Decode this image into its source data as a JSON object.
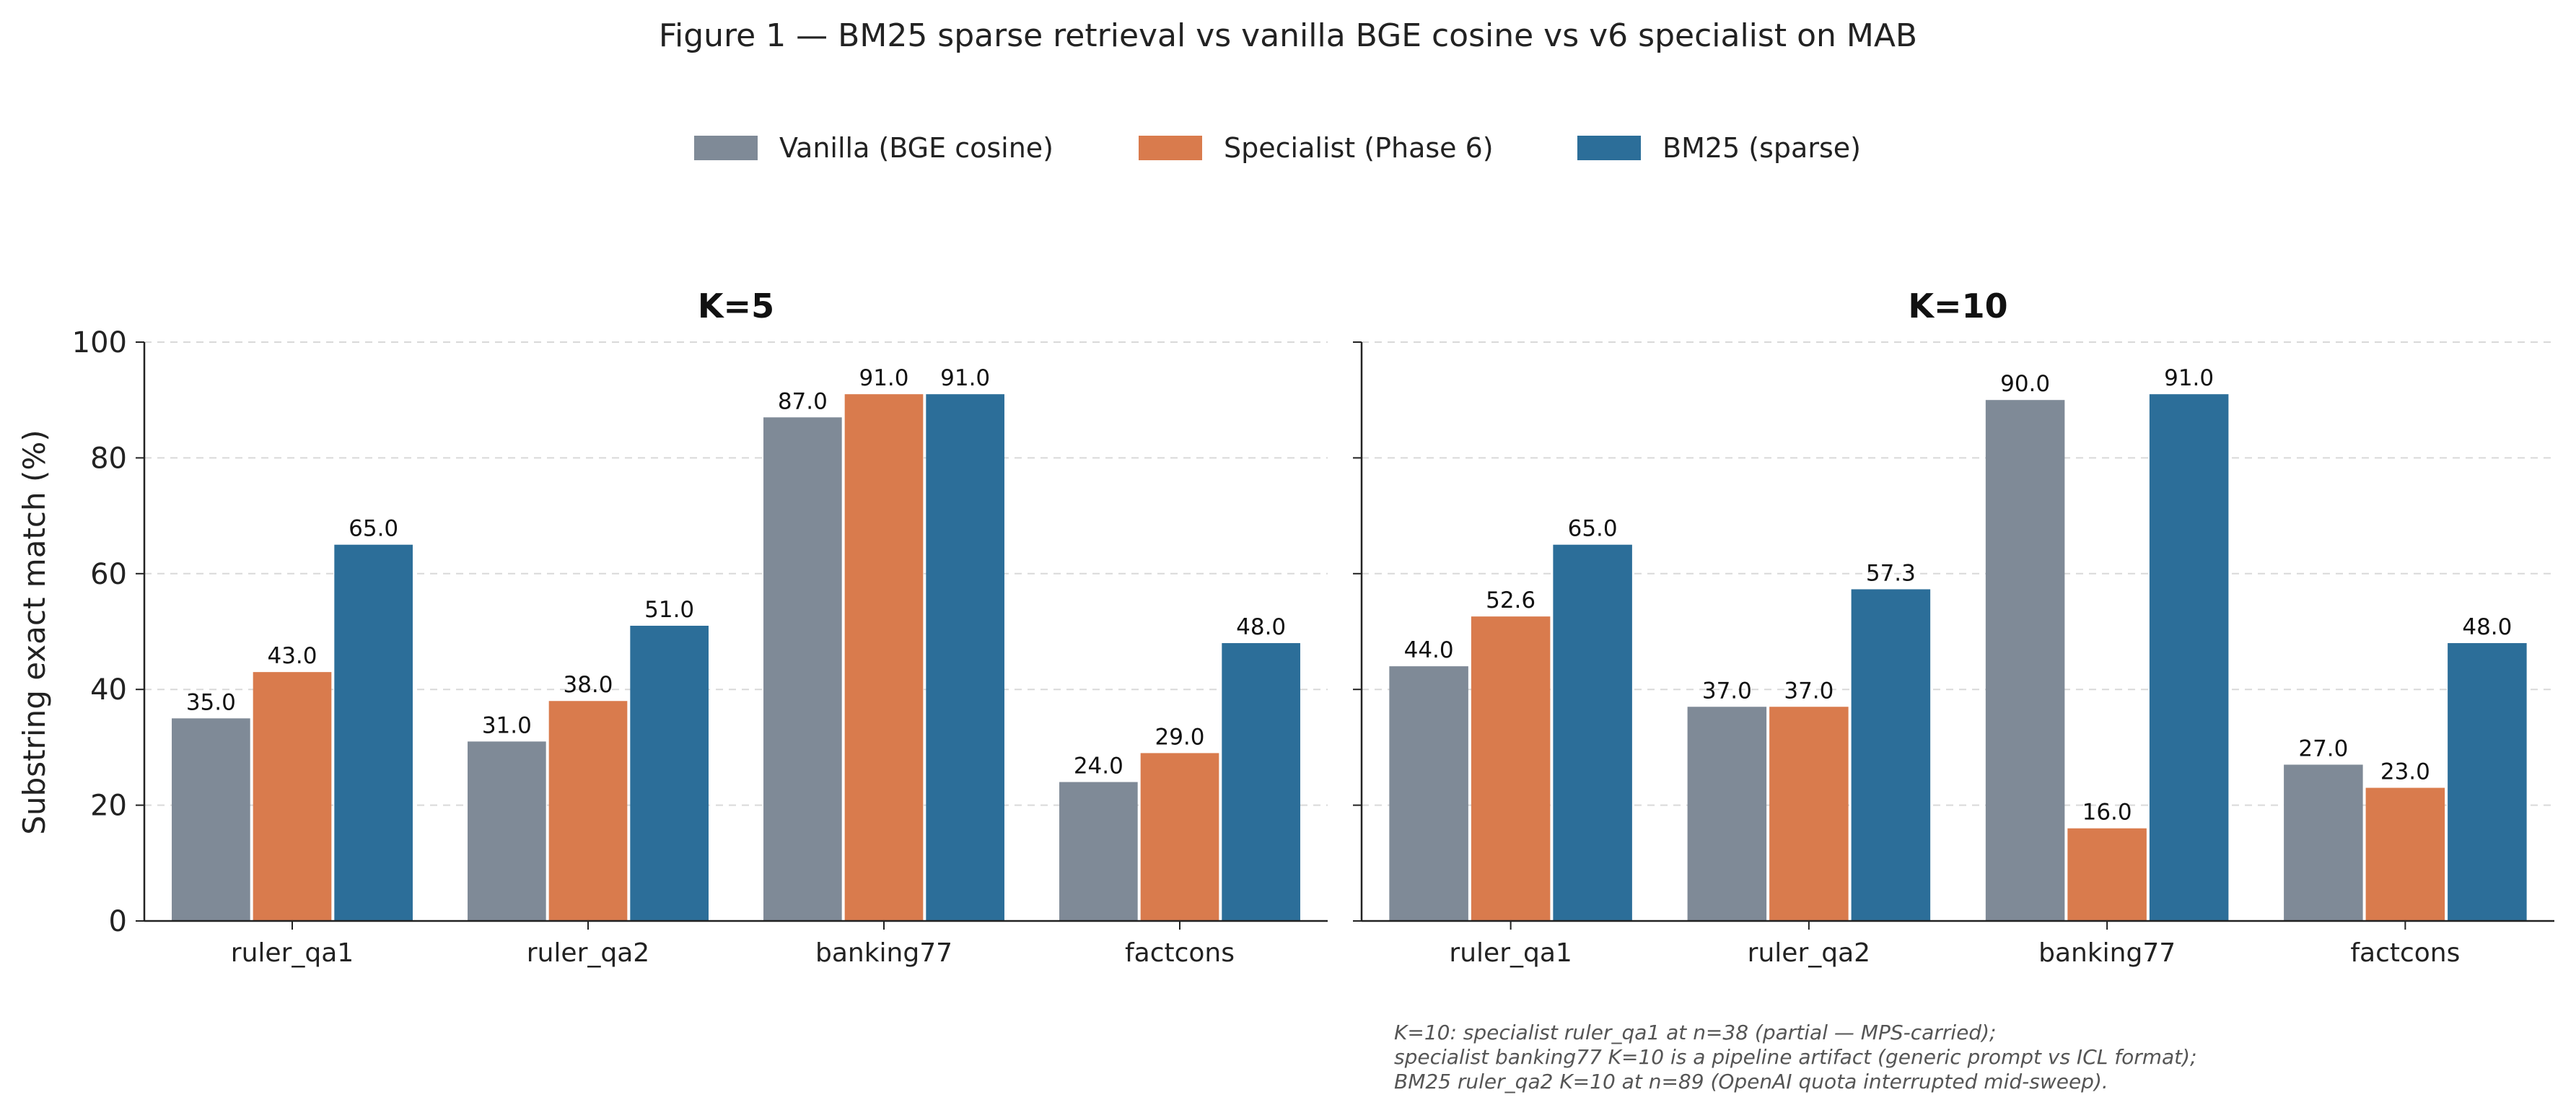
{
  "figure": {
    "title": "Figure 1 — BM25 sparse retrieval vs vanilla BGE cosine vs v6 specialist on MAB",
    "notes": [
      "K=10: specialist ruler_qa1 at n=38 (partial — MPS-carried);",
      "specialist banking77 K=10 is a pipeline artifact (generic prompt vs ICL format);",
      "BM25 ruler_qa2 K=10 at n=89 (OpenAI quota interrupted mid-sweep)."
    ]
  },
  "colors": {
    "vanilla": "#7f8a97",
    "specialist": "#d97b4d",
    "bm25": "#2c6e99"
  },
  "chart_data": [
    {
      "type": "bar",
      "title": "K=5",
      "xlabel": "",
      "ylabel": "Substring exact match (%)",
      "ylim": [
        0,
        100
      ],
      "yticks": [
        0,
        20,
        40,
        60,
        80,
        100
      ],
      "grid": "y dashed",
      "legend": "top-center",
      "categories": [
        "ruler_qa1",
        "ruler_qa2",
        "banking77",
        "factcons"
      ],
      "series": [
        {
          "name": "Vanilla (BGE cosine)",
          "values": [
            35.0,
            31.0,
            87.0,
            24.0
          ],
          "labels": [
            "35.0",
            "31.0",
            "87.0",
            "24.0"
          ]
        },
        {
          "name": "Specialist (Phase 6)",
          "values": [
            43.0,
            38.0,
            91.0,
            29.0
          ],
          "labels": [
            "43.0",
            "38.0",
            "91.0",
            "29.0"
          ]
        },
        {
          "name": "BM25 (sparse)",
          "values": [
            65.0,
            51.0,
            91.0,
            48.0
          ],
          "labels": [
            "65.0",
            "51.0",
            "91.0",
            "48.0"
          ]
        }
      ]
    },
    {
      "type": "bar",
      "title": "K=10",
      "xlabel": "",
      "ylabel": "",
      "ylim": [
        0,
        100
      ],
      "yticks": [
        0,
        20,
        40,
        60,
        80,
        100
      ],
      "grid": "y dashed",
      "legend": "top-center",
      "categories": [
        "ruler_qa1",
        "ruler_qa2",
        "banking77",
        "factcons"
      ],
      "series": [
        {
          "name": "Vanilla (BGE cosine)",
          "values": [
            44.0,
            37.0,
            90.0,
            27.0
          ],
          "labels": [
            "44.0",
            "37.0",
            "90.0",
            "27.0"
          ]
        },
        {
          "name": "Specialist (Phase 6)",
          "values": [
            52.6,
            37.0,
            16.0,
            23.0
          ],
          "labels": [
            "52.6",
            "37.0",
            "16.0",
            "23.0"
          ]
        },
        {
          "name": "BM25 (sparse)",
          "values": [
            65.0,
            57.3,
            91.0,
            48.0
          ],
          "labels": [
            "65.0",
            "57.3",
            "91.0",
            "48.0"
          ]
        }
      ]
    }
  ]
}
